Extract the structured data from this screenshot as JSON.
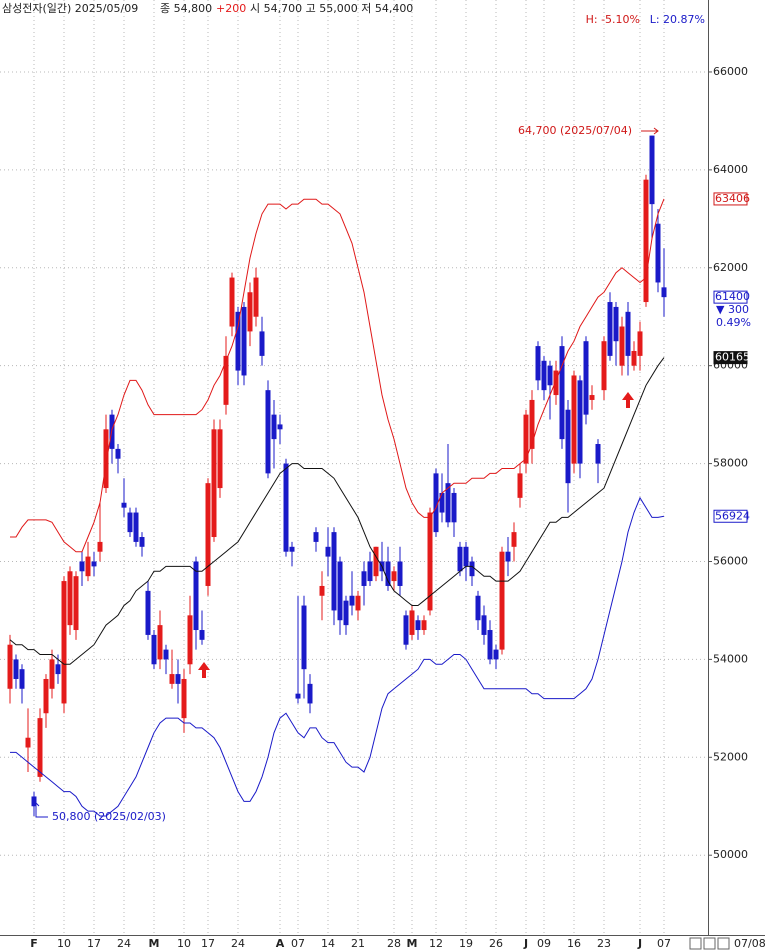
{
  "chart_data": {
    "type": "candlestick",
    "title": "삼성전자(일간) 2025/05/09",
    "header": {
      "close_label": "종 54,800",
      "close_change": "+200",
      "ohl": "시 54,700 고 55,000 저 54,400"
    },
    "high_ratio": "H: -5.10%",
    "low_ratio": "L: 20.87%",
    "annotations": [
      "64,700 (2025/07/04)",
      "50,800 (2025/02/03)"
    ],
    "change": "▼ 300",
    "change_pct": "0.49%",
    "current_date": "07/08",
    "up_color": "#e41b1b",
    "down_color": "#1a1ac8",
    "ylim": [
      48370,
      67470
    ],
    "yticks": [
      50000,
      52000,
      54000,
      56000,
      58000,
      60000,
      62000,
      64000,
      66000
    ],
    "grid": true,
    "categories": [
      null,
      null,
      null,
      null,
      "F",
      null,
      null,
      null,
      null,
      "10",
      null,
      null,
      null,
      null,
      "17",
      null,
      null,
      null,
      null,
      "24",
      null,
      null,
      null,
      null,
      "M",
      null,
      null,
      null,
      null,
      "10",
      null,
      null,
      null,
      "17",
      null,
      null,
      null,
      null,
      "24",
      null,
      null,
      null,
      null,
      null,
      null,
      "A",
      null,
      null,
      "07",
      null,
      null,
      null,
      null,
      "14",
      null,
      null,
      null,
      null,
      "21",
      null,
      null,
      null,
      null,
      null,
      "28",
      null,
      null,
      "M",
      null,
      null,
      null,
      "12",
      null,
      null,
      null,
      null,
      "19",
      null,
      null,
      null,
      null,
      "26",
      null,
      null,
      null,
      null,
      "J",
      null,
      null,
      "09",
      null,
      null,
      null,
      null,
      "16",
      null,
      null,
      null,
      null,
      "23",
      null,
      null,
      null,
      null,
      null,
      "J",
      null,
      null,
      null,
      "07"
    ],
    "open": [
      53400,
      54000,
      53800,
      52200,
      51200,
      51600,
      52900,
      53400,
      53900,
      53100,
      54700,
      54600,
      56000,
      55700,
      56000,
      56200,
      57500,
      59000,
      58300,
      57200,
      57000,
      57000,
      56500,
      55400,
      54500,
      54000,
      54200,
      53500,
      53700,
      52800,
      53900,
      56000,
      54600,
      55500,
      56500,
      57500,
      59200,
      60800,
      61100,
      61200,
      60700,
      61000,
      60700,
      59500,
      59000,
      58800,
      58000,
      56300,
      53300,
      55100,
      53500,
      56600,
      55300,
      56300,
      56600,
      56000,
      55200,
      55300,
      55000,
      55800,
      56000,
      55700,
      56000,
      56000,
      55600,
      56000,
      54900,
      54500,
      54800,
      54600,
      55000,
      57800,
      57400,
      57600,
      57400,
      56300,
      56300,
      56000,
      55300,
      54900,
      54600,
      54200,
      54200,
      56200,
      56300,
      57300,
      58000,
      58300,
      60400,
      60100,
      60000,
      59400,
      60400,
      59100,
      58000,
      59700,
      60500,
      59300,
      58400,
      59500,
      61300,
      61200,
      60000,
      61100,
      60000,
      60200,
      61300,
      64700,
      62900,
      61600
    ],
    "high": [
      54500,
      54100,
      53900,
      53000,
      51300,
      53000,
      53700,
      54200,
      54100,
      55700,
      55900,
      55800,
      56200,
      56400,
      56200,
      57200,
      59000,
      59100,
      58400,
      57700,
      57100,
      57100,
      56600,
      55600,
      54600,
      55000,
      54300,
      54200,
      54000,
      53800,
      55300,
      56100,
      55000,
      57700,
      58900,
      58900,
      60600,
      61900,
      61200,
      61300,
      61700,
      62000,
      61000,
      59700,
      59300,
      59000,
      58100,
      56400,
      55300,
      55300,
      53700,
      56700,
      55800,
      56700,
      56700,
      56100,
      55300,
      55800,
      55400,
      56000,
      56200,
      56300,
      56400,
      56300,
      55900,
      56300,
      55000,
      55100,
      54900,
      54900,
      57100,
      57900,
      57800,
      58400,
      57500,
      56400,
      56400,
      56100,
      55400,
      55100,
      54800,
      54300,
      56300,
      56500,
      56800,
      58000,
      59100,
      59500,
      60500,
      60200,
      60100,
      60100,
      60600,
      59300,
      59900,
      59800,
      60600,
      59600,
      58500,
      60600,
      61500,
      61300,
      61000,
      61300,
      60500,
      60900,
      63900,
      64700,
      63200,
      62400
    ],
    "low": [
      53100,
      53400,
      53100,
      51700,
      50800,
      51500,
      52600,
      53200,
      53500,
      52900,
      54500,
      54400,
      55500,
      55600,
      55700,
      56000,
      57400,
      58000,
      57800,
      56900,
      56500,
      56300,
      56100,
      54400,
      53800,
      53800,
      53700,
      53400,
      53100,
      52500,
      53700,
      54200,
      54300,
      55300,
      56400,
      57300,
      59000,
      60600,
      59600,
      59600,
      60400,
      60800,
      60000,
      57700,
      57900,
      58400,
      56100,
      55900,
      53100,
      53200,
      52900,
      56200,
      54800,
      55700,
      54700,
      54500,
      54500,
      54900,
      54800,
      55100,
      55500,
      55600,
      55600,
      55400,
      55400,
      55300,
      54200,
      54400,
      54400,
      54500,
      54900,
      56500,
      56800,
      56700,
      56500,
      55700,
      55600,
      55500,
      54600,
      54300,
      53900,
      53800,
      54100,
      55700,
      56000,
      57100,
      57800,
      58000,
      59500,
      59300,
      58900,
      59200,
      58300,
      57000,
      57800,
      57700,
      58800,
      59100,
      57600,
      59300,
      60100,
      60000,
      59800,
      59800,
      59900,
      59900,
      61200,
      62600,
      61500,
      61000
    ],
    "close": [
      54300,
      53600,
      53400,
      52400,
      51000,
      52800,
      53600,
      54000,
      53700,
      55600,
      55800,
      55700,
      55800,
      56100,
      55900,
      56400,
      58700,
      58300,
      58100,
      57100,
      56600,
      56400,
      56300,
      54500,
      53900,
      54700,
      54000,
      53700,
      53500,
      53600,
      54900,
      54600,
      54400,
      57600,
      58700,
      58700,
      60200,
      61800,
      59900,
      59800,
      61500,
      61800,
      60200,
      57800,
      58500,
      58700,
      56200,
      56200,
      53200,
      53800,
      53100,
      56400,
      55500,
      56100,
      55000,
      54800,
      54700,
      55100,
      55300,
      55500,
      55600,
      56300,
      55800,
      55500,
      55800,
      55500,
      54300,
      55000,
      54600,
      54800,
      57000,
      56600,
      57000,
      56800,
      56800,
      55800,
      55900,
      55700,
      54800,
      54500,
      54000,
      54000,
      56200,
      56000,
      56600,
      57800,
      59000,
      59300,
      59700,
      59500,
      59600,
      59900,
      58500,
      57600,
      59800,
      58000,
      59000,
      59400,
      58000,
      60500,
      60200,
      60500,
      60800,
      60200,
      60300,
      60700,
      63800,
      63300,
      61700,
      61400
    ],
    "series": [
      {
        "color": "#e01818",
        "values": [
          56500,
          56500,
          56700,
          56850,
          56850,
          56850,
          56850,
          56800,
          56600,
          56400,
          56300,
          56200,
          56200,
          56500,
          56800,
          57200,
          58000,
          58700,
          59000,
          59400,
          59700,
          59700,
          59500,
          59200,
          59000,
          59000,
          59000,
          59000,
          59000,
          59000,
          59000,
          59000,
          59100,
          59300,
          59600,
          59800,
          60100,
          60400,
          60800,
          61500,
          62200,
          62700,
          63100,
          63300,
          63300,
          63300,
          63200,
          63300,
          63300,
          63400,
          63400,
          63400,
          63300,
          63300,
          63200,
          63100,
          62800,
          62500,
          62000,
          61500,
          60800,
          60100,
          59400,
          58900,
          58500,
          58000,
          57500,
          57200,
          57000,
          56900,
          56900,
          57100,
          57400,
          57500,
          57600,
          57600,
          57600,
          57700,
          57700,
          57700,
          57800,
          57800,
          57900,
          57900,
          57900,
          58000,
          58100,
          58400,
          58800,
          59100,
          59400,
          59700,
          60000,
          60300,
          60500,
          60800,
          61000,
          61200,
          61400,
          61500,
          61700,
          61900,
          62000,
          61900,
          61800,
          61700,
          61800,
          62600,
          63100,
          63406
        ]
      },
      {
        "color": "#111111",
        "values": [
          54400,
          54300,
          54300,
          54200,
          54200,
          54100,
          54100,
          54100,
          54000,
          53900,
          53900,
          54000,
          54100,
          54200,
          54300,
          54500,
          54700,
          54800,
          54900,
          55100,
          55200,
          55400,
          55500,
          55600,
          55800,
          55800,
          55900,
          55900,
          55900,
          55900,
          55900,
          55800,
          55800,
          55900,
          56000,
          56100,
          56200,
          56300,
          56400,
          56600,
          56800,
          57000,
          57200,
          57400,
          57600,
          57800,
          57900,
          58000,
          58000,
          57900,
          57900,
          57900,
          57900,
          57800,
          57700,
          57500,
          57300,
          57100,
          56900,
          56600,
          56300,
          56100,
          55900,
          55600,
          55400,
          55300,
          55200,
          55100,
          55100,
          55200,
          55300,
          55400,
          55500,
          55600,
          55700,
          55800,
          55900,
          55900,
          55800,
          55700,
          55700,
          55600,
          55600,
          55600,
          55700,
          55800,
          56000,
          56200,
          56400,
          56600,
          56800,
          56800,
          56900,
          56900,
          57000,
          57100,
          57200,
          57300,
          57400,
          57500,
          57800,
          58100,
          58400,
          58700,
          59000,
          59300,
          59600,
          59800,
          60000,
          60165
        ]
      },
      {
        "color": "#1a1ac8",
        "values": [
          52100,
          52100,
          52000,
          51900,
          51800,
          51700,
          51600,
          51500,
          51400,
          51300,
          51300,
          51200,
          51000,
          50900,
          50900,
          50800,
          50800,
          50900,
          51000,
          51200,
          51400,
          51600,
          51900,
          52200,
          52500,
          52700,
          52800,
          52800,
          52800,
          52700,
          52700,
          52600,
          52600,
          52500,
          52400,
          52200,
          51900,
          51600,
          51300,
          51100,
          51100,
          51300,
          51600,
          52000,
          52500,
          52800,
          52900,
          52700,
          52500,
          52400,
          52600,
          52600,
          52400,
          52300,
          52300,
          52100,
          51900,
          51800,
          51800,
          51700,
          52000,
          52500,
          53000,
          53300,
          53400,
          53500,
          53600,
          53700,
          53800,
          54000,
          54000,
          53900,
          53900,
          54000,
          54100,
          54100,
          54000,
          53800,
          53600,
          53400,
          53400,
          53400,
          53400,
          53400,
          53400,
          53400,
          53400,
          53300,
          53300,
          53200,
          53200,
          53200,
          53200,
          53200,
          53200,
          53300,
          53400,
          53600,
          54000,
          54500,
          55000,
          55500,
          56000,
          56600,
          57000,
          57300,
          57100,
          56900,
          56900,
          56924
        ]
      }
    ]
  }
}
